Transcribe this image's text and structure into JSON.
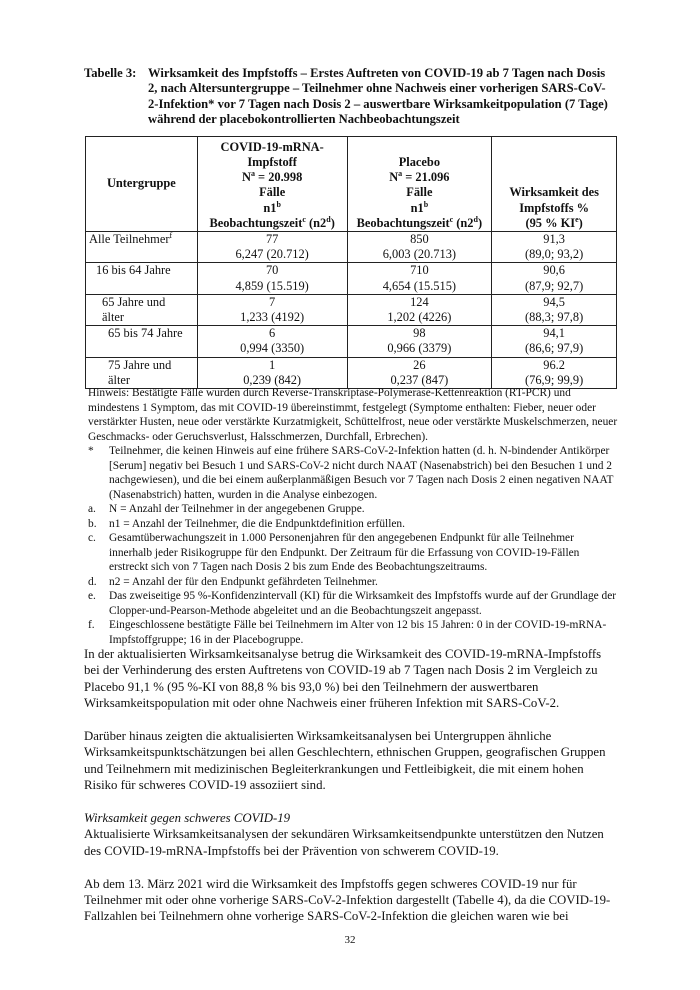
{
  "caption": {
    "label": "Tabelle 3:",
    "text": "Wirksamkeit des Impfstoffs – Erstes Auftreten von COVID-19 ab 7 Tagen nach Dosis 2, nach Altersuntergruppe – Teilnehmer ohne Nachweis einer vorherigen SARS-CoV-2-Infektion* vor 7 Tagen nach Dosis 2 – auswertbare Wirksamkeitpopulation (7 Tage) während der placebokontrollierten Nachbeobachtungszeit"
  },
  "table": {
    "headers": {
      "subgroup": "Untergruppe",
      "vaccine": {
        "l1": "COVID-19-mRNA-",
        "l2": "Impfstoff",
        "n": "Na = 20.998",
        "n_pre": "N",
        "n_sup": "a",
        "n_post": " = 20.998",
        "cases": "Fälle",
        "n1": "n1",
        "n1_sup": "b",
        "obs": "Beobachtungszeit",
        "obs_sup": "c",
        "n2": " (n2",
        "n2_sup": "d",
        "close": ")"
      },
      "placebo": {
        "l1": "Placebo",
        "n_pre": "N",
        "n_sup": "a",
        "n_post": " = 21.096",
        "cases": "Fälle",
        "n1": "n1",
        "n1_sup": "b",
        "obs": "Beobachtungszeit",
        "obs_sup": "c",
        "n2": " (n2",
        "n2_sup": "d",
        "close": ")"
      },
      "efficacy": {
        "l1": "Wirksamkeit des",
        "l2": "Impfstoffs %",
        "l3": "(95 % KI",
        "l3_sup": "e",
        "l3_close": ")"
      }
    },
    "rows": [
      {
        "subgroup": "Alle Teilnehmer",
        "sup": "f",
        "v1": "77",
        "v2": "6,247 (20.712)",
        "p1": "850",
        "p2": "6,003 (20.713)",
        "e1": "91,3",
        "e2": "(89,0; 93,2)"
      },
      {
        "subgroup": "16 bis 64 Jahre",
        "v1": "70",
        "v2": "4,859 (15.519)",
        "p1": "710",
        "p2": "4,654 (15.515)",
        "e1": "90,6",
        "e2": "(87,9; 92,7)"
      },
      {
        "subgroup": "65 Jahre und älter",
        "v1": "7",
        "v2": "1,233 (4192)",
        "p1": "124",
        "p2": "1,202 (4226)",
        "e1": "94,5",
        "e2": "(88,3; 97,8)"
      },
      {
        "subgroup": "65 bis 74 Jahre",
        "v1": "6",
        "v2": "0,994 (3350)",
        "p1": "98",
        "p2": "0,966 (3379)",
        "e1": "94,1",
        "e2": "(86,6; 97,9)"
      },
      {
        "subgroup": "75 Jahre und älter",
        "v1": "1",
        "v2": "0,239 (842)",
        "p1": "26",
        "p2": "0,237 (847)",
        "e1": "96.2",
        "e2": "(76,9; 99,9)"
      }
    ]
  },
  "notes": {
    "hint": "Hinweis: Bestätigte Fälle wurden durch Reverse-Transkriptase-Polymerase-Kettenreaktion (RT-PCR) und mindestens 1 Symptom, das mit COVID-19 übereinstimmt, festgelegt (Symptome enthalten: Fieber, neuer oder verstärkter Husten, neue oder verstärkte Kurzatmigkeit, Schüttelfrost, neue oder verstärkte Muskelschmerzen, neuer Geschmacks- oder Geruchsverlust, Halsschmerzen, Durchfall, Erbrechen).",
    "footnotes": [
      {
        "key": "*",
        "text": "Teilnehmer, die keinen Hinweis auf eine frühere SARS-CoV-2-Infektion hatten (d. h. N-bindender Antikörper [Serum] negativ bei Besuch 1 und SARS-CoV-2 nicht durch NAAT (Nasenabstrich) bei den Besuchen 1 und 2 nachgewiesen), und die bei einem außerplanmäßigen Besuch vor 7 Tagen nach Dosis 2 einen negativen NAAT (Nasenabstrich) hatten, wurden in die Analyse einbezogen."
      },
      {
        "key": "a.",
        "text": "N = Anzahl der Teilnehmer in der angegebenen Gruppe."
      },
      {
        "key": "b.",
        "text": "n1 = Anzahl der Teilnehmer, die die Endpunktdefinition erfüllen."
      },
      {
        "key": "c.",
        "text": "Gesamtüberwachungszeit in 1.000 Personenjahren für den angegebenen Endpunkt für alle Teilnehmer innerhalb jeder Risikogruppe für den Endpunkt. Der Zeitraum für die Erfassung von COVID-19-Fällen erstreckt sich von 7 Tagen nach Dosis 2 bis zum Ende des Beobachtungszeitraums."
      },
      {
        "key": "d.",
        "text": "n2 = Anzahl der für den Endpunkt gefährdeten Teilnehmer."
      },
      {
        "key": "e.",
        "text": "Das zweiseitige 95 %-Konfidenzintervall (KI) für die Wirksamkeit des Impfstoffs wurde auf der Grundlage der Clopper-und-Pearson-Methode abgeleitet und an die Beobachtungszeit angepasst."
      },
      {
        "key": "f.",
        "text": "Eingeschlossene bestätigte Fälle bei Teilnehmern im Alter von 12 bis 15 Jahren: 0 in der COVID-19-mRNA-Impfstoffgruppe; 16 in der Placebogruppe."
      }
    ]
  },
  "body": {
    "p1": "In der aktualisierten Wirksamkeitsanalyse betrug die Wirksamkeit des COVID-19-mRNA-Impfstoffs bei der Verhinderung des ersten Auftretens von COVID-19 ab 7 Tagen nach Dosis 2 im Vergleich zu Placebo 91,1 % (95 %-KI von 88,8 % bis 93,0 %) bei den Teilnehmern der auswertbaren Wirksamkeitspopulation mit oder ohne Nachweis einer früheren Infektion mit SARS-CoV-2.",
    "p2": "Darüber hinaus zeigten die aktualisierten Wirksamkeitsanalysen bei Untergruppen ähnliche Wirksamkeitspunktschätzungen bei allen Geschlechtern, ethnischen Gruppen, geografischen Gruppen und Teilnehmern mit medizinischen Begleiterkrankungen und Fettleibigkeit, die mit einem hohen Risiko für schweres COVID-19 assoziiert sind.",
    "heading": "Wirksamkeit gegen schweres COVID-19",
    "p3": "Aktualisierte Wirksamkeitsanalysen der sekundären Wirksamkeitsendpunkte unterstützen den Nutzen des COVID-19-mRNA-Impfstoffs bei der Prävention von schwerem COVID-19.",
    "p4": "Ab dem 13. März 2021 wird die Wirksamkeit des Impfstoffs gegen schweres COVID-19 nur für Teilnehmer mit oder ohne vorherige SARS-CoV-2-Infektion dargestellt (Tabelle 4), da die COVID-19-Fallzahlen bei Teilnehmern ohne vorherige SARS-CoV-2-Infektion die gleichen waren wie bei"
  },
  "page_number": "32"
}
